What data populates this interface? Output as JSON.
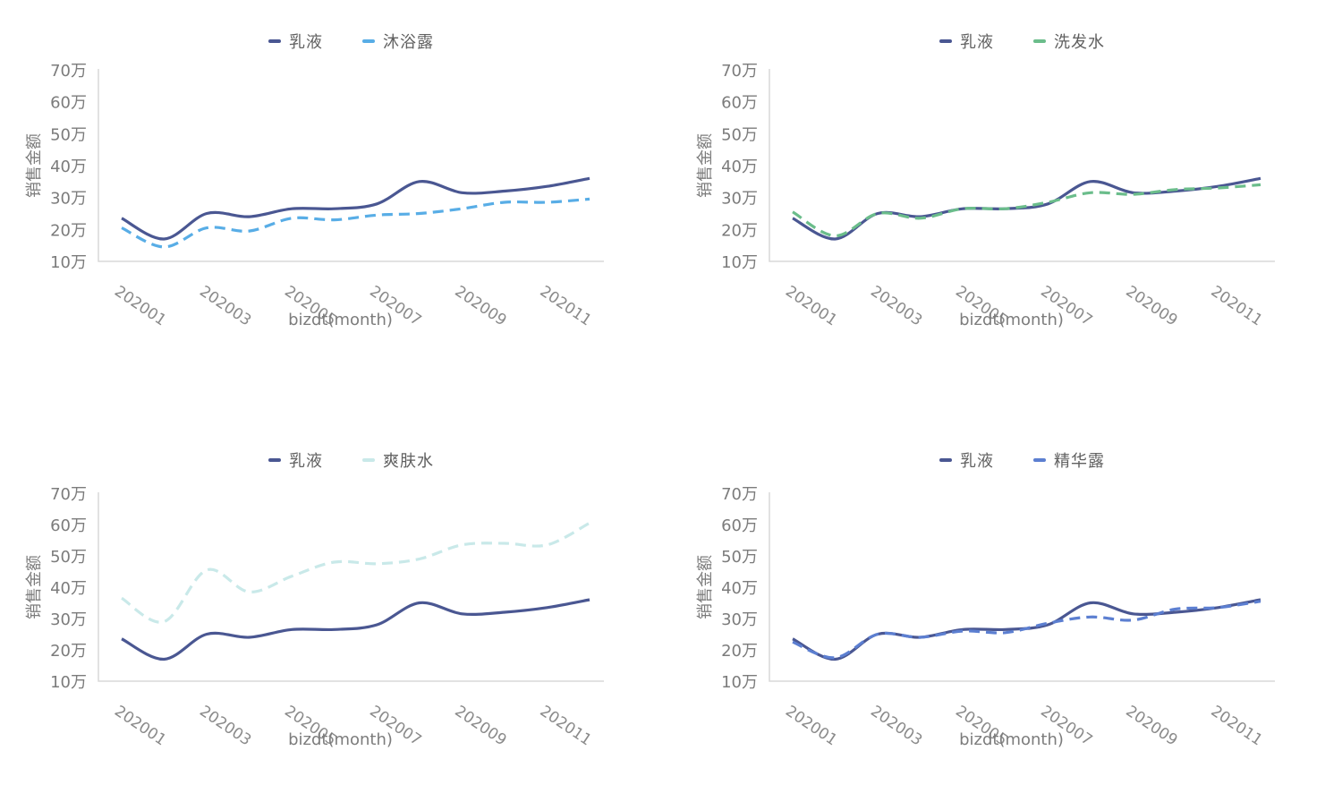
{
  "page": {
    "background": "#ffffff"
  },
  "style_colors": {
    "axis_line": "#D9D9D9",
    "tick_text": "#7C7C7C",
    "legend_text": "#606060"
  },
  "chart_data": [
    {
      "type": "line",
      "title": "",
      "xlabel": "bizdt(month)",
      "ylabel": "销售金额",
      "x": [
        "202001",
        "202002",
        "202003",
        "202004",
        "202005",
        "202006",
        "202007",
        "202008",
        "202009",
        "202010",
        "202011",
        "202012"
      ],
      "xtick_labels": [
        "202001",
        "202003",
        "202005",
        "202007",
        "202009",
        "202011"
      ],
      "ytick_labels": [
        "10万",
        "20万",
        "30万",
        "40万",
        "50万",
        "60万",
        "70万"
      ],
      "ylim_wan": [
        10,
        70
      ],
      "grid": false,
      "legend_position": "top",
      "series": [
        {
          "name": "乳液",
          "color": "#4A5792",
          "line_style": "solid",
          "values_wan": [
            23.5,
            17,
            25,
            24,
            26.5,
            26.5,
            28,
            35,
            31.5,
            32,
            33.5,
            36
          ]
        },
        {
          "name": "沐浴露",
          "color": "#58ADE6",
          "line_style": "dashed",
          "values_wan": [
            20.5,
            14.5,
            20.5,
            19.5,
            23.5,
            23,
            24.5,
            25,
            26.5,
            28.5,
            28.5,
            29.5
          ]
        }
      ]
    },
    {
      "type": "line",
      "title": "",
      "xlabel": "bizdt(month)",
      "ylabel": "销售金额",
      "x": [
        "202001",
        "202002",
        "202003",
        "202004",
        "202005",
        "202006",
        "202007",
        "202008",
        "202009",
        "202010",
        "202011",
        "202012"
      ],
      "xtick_labels": [
        "202001",
        "202003",
        "202005",
        "202007",
        "202009",
        "202011"
      ],
      "ytick_labels": [
        "10万",
        "20万",
        "30万",
        "40万",
        "50万",
        "60万",
        "70万"
      ],
      "ylim_wan": [
        10,
        70
      ],
      "grid": false,
      "legend_position": "top",
      "series": [
        {
          "name": "乳液",
          "color": "#4A5792",
          "line_style": "solid",
          "values_wan": [
            23.5,
            17,
            25,
            24,
            26.5,
            26.5,
            28,
            35,
            31.5,
            32,
            33.5,
            36
          ]
        },
        {
          "name": "洗发水",
          "color": "#6BBD8B",
          "line_style": "dashed",
          "values_wan": [
            25.5,
            18,
            25,
            23.5,
            26.5,
            26.5,
            28.5,
            31.5,
            31,
            32.5,
            33,
            34
          ]
        }
      ]
    },
    {
      "type": "line",
      "title": "",
      "xlabel": "bizdt(month)",
      "ylabel": "销售金额",
      "x": [
        "202001",
        "202002",
        "202003",
        "202004",
        "202005",
        "202006",
        "202007",
        "202008",
        "202009",
        "202010",
        "202011",
        "202012"
      ],
      "xtick_labels": [
        "202001",
        "202003",
        "202005",
        "202007",
        "202009",
        "202011"
      ],
      "ytick_labels": [
        "10万",
        "20万",
        "30万",
        "40万",
        "50万",
        "60万",
        "70万"
      ],
      "ylim_wan": [
        10,
        70
      ],
      "grid": false,
      "legend_position": "top",
      "series": [
        {
          "name": "乳液",
          "color": "#4A5792",
          "line_style": "solid",
          "values_wan": [
            23.5,
            17,
            25,
            24,
            26.5,
            26.5,
            28,
            35,
            31.5,
            32,
            33.5,
            36
          ]
        },
        {
          "name": "爽肤水",
          "color": "#C9E9E9",
          "line_style": "dashed",
          "values_wan": [
            36.5,
            29,
            45.5,
            38.5,
            43.5,
            48,
            47.5,
            49,
            53.5,
            54,
            53.5,
            60.5
          ]
        }
      ]
    },
    {
      "type": "line",
      "title": "",
      "xlabel": "bizdt(month)",
      "ylabel": "销售金额",
      "x": [
        "202001",
        "202002",
        "202003",
        "202004",
        "202005",
        "202006",
        "202007",
        "202008",
        "202009",
        "202010",
        "202011",
        "202012"
      ],
      "xtick_labels": [
        "202001",
        "202003",
        "202005",
        "202007",
        "202009",
        "202011"
      ],
      "ytick_labels": [
        "10万",
        "20万",
        "30万",
        "40万",
        "50万",
        "60万",
        "70万"
      ],
      "ylim_wan": [
        10,
        70
      ],
      "grid": false,
      "legend_position": "top",
      "series": [
        {
          "name": "乳液",
          "color": "#4A5792",
          "line_style": "solid",
          "values_wan": [
            23.5,
            17,
            25,
            24,
            26.5,
            26.5,
            28,
            35,
            31.5,
            32,
            33.5,
            36
          ]
        },
        {
          "name": "精华露",
          "color": "#5C7FD1",
          "line_style": "dashed",
          "values_wan": [
            22.5,
            17.5,
            25,
            24,
            26,
            25.5,
            28.5,
            30.5,
            29.5,
            33,
            33.5,
            35.5
          ]
        }
      ]
    }
  ]
}
